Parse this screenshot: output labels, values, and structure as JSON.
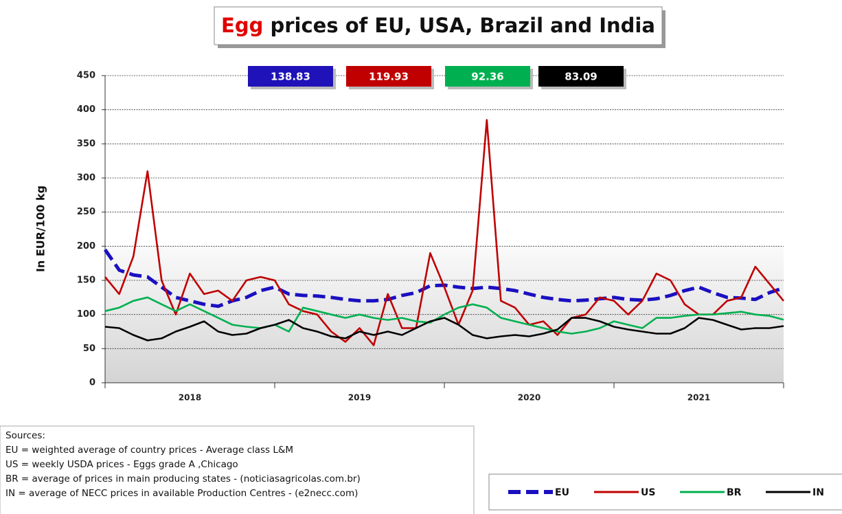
{
  "chart_data": {
    "type": "line",
    "title": "Egg prices of EU, USA, Brazil and India",
    "title_highlight": "Egg",
    "ylabel": "In EUR/100 kg",
    "categories": [
      null,
      null,
      null,
      null,
      null,
      null,
      "2018",
      null,
      null,
      null,
      null,
      null,
      null,
      null,
      null,
      null,
      null,
      null,
      "2019",
      null,
      null,
      null,
      null,
      null,
      null,
      null,
      null,
      null,
      null,
      null,
      "2020",
      null,
      null,
      null,
      null,
      null,
      null,
      null,
      null,
      null,
      null,
      null,
      "2021",
      null,
      null,
      null,
      null,
      null,
      null
    ],
    "ylim": [
      0,
      450
    ],
    "yticks": [
      0,
      50,
      100,
      150,
      200,
      250,
      300,
      350,
      400,
      450
    ],
    "grid": true,
    "series": [
      {
        "name": "EU",
        "color": "#1a10c0",
        "values": [
          195,
          165,
          158,
          155,
          140,
          125,
          120,
          115,
          112,
          120,
          125,
          135,
          140,
          130,
          128,
          127,
          125,
          122,
          120,
          120,
          122,
          128,
          132,
          142,
          143,
          140,
          138,
          140,
          138,
          135,
          130,
          125,
          122,
          120,
          121,
          123,
          125,
          122,
          121,
          123,
          128,
          135,
          140,
          132,
          125,
          124,
          122,
          132,
          138.83
        ]
      },
      {
        "name": "US",
        "color": "#c00000",
        "values": [
          155,
          130,
          185,
          310,
          150,
          100,
          160,
          130,
          135,
          120,
          150,
          155,
          150,
          115,
          105,
          100,
          75,
          60,
          80,
          55,
          130,
          80,
          80,
          190,
          140,
          85,
          135,
          385,
          120,
          110,
          85,
          90,
          70,
          95,
          100,
          125,
          120,
          100,
          120,
          160,
          150,
          115,
          100,
          100,
          120,
          125,
          170,
          145,
          119.93
        ]
      },
      {
        "name": "BR",
        "color": "#00b050",
        "values": [
          105,
          110,
          120,
          125,
          115,
          105,
          115,
          105,
          95,
          85,
          82,
          80,
          85,
          75,
          110,
          105,
          100,
          95,
          100,
          95,
          92,
          95,
          90,
          88,
          100,
          110,
          115,
          110,
          95,
          90,
          85,
          80,
          75,
          72,
          75,
          80,
          90,
          85,
          80,
          95,
          95,
          98,
          100,
          100,
          102,
          104,
          100,
          98,
          92.36
        ]
      },
      {
        "name": "IN",
        "color": "#000000",
        "values": [
          82,
          80,
          70,
          62,
          65,
          75,
          82,
          90,
          75,
          70,
          72,
          80,
          85,
          92,
          80,
          75,
          68,
          65,
          75,
          70,
          75,
          70,
          80,
          90,
          95,
          85,
          70,
          65,
          68,
          70,
          68,
          72,
          78,
          95,
          95,
          90,
          82,
          78,
          75,
          72,
          72,
          80,
          95,
          92,
          85,
          78,
          80,
          80,
          83.09
        ]
      }
    ],
    "legend": "bottom-right",
    "sources": [
      "Sources:",
      "EU =  weighted average of country prices  -  Average class  L&M",
      "US =  weekly USDA prices  -  Eggs grade A ,Chicago",
      "BR =  average of prices in main producing states  - (noticiasagricolas.com.br)",
      "IN =  average of NECC prices in available  Production Centres - (e2necc.com)"
    ]
  }
}
